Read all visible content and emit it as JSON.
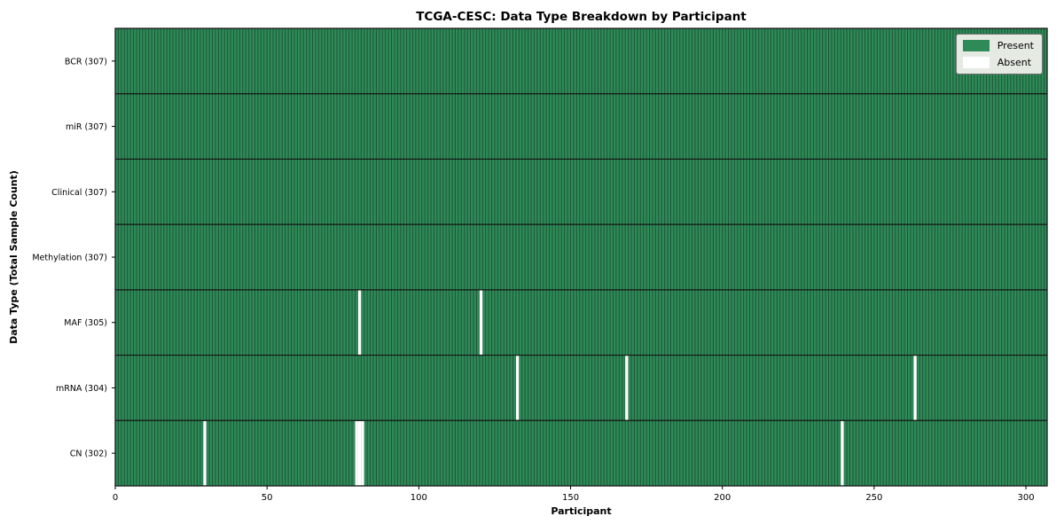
{
  "chart_data": {
    "type": "heatmap",
    "title": "TCGA-CESC: Data Type Breakdown by Participant",
    "xlabel": "Participant",
    "ylabel": "Data Type (Total Sample Count)",
    "n_participants": 307,
    "xlim": [
      0,
      307
    ],
    "x_ticks": [
      0,
      50,
      100,
      150,
      200,
      250,
      300
    ],
    "rows": [
      {
        "label": "BCR (307)",
        "name": "BCR",
        "total": 307,
        "absent_participants": []
      },
      {
        "label": "miR (307)",
        "name": "miR",
        "total": 307,
        "absent_participants": []
      },
      {
        "label": "Clinical (307)",
        "name": "Clinical",
        "total": 307,
        "absent_participants": []
      },
      {
        "label": "Methylation (307)",
        "name": "Methylation",
        "total": 307,
        "absent_participants": []
      },
      {
        "label": "MAF (305)",
        "name": "MAF",
        "total": 305,
        "absent_participants": [
          80,
          120
        ]
      },
      {
        "label": "mRNA (304)",
        "name": "mRNA",
        "total": 304,
        "absent_participants": [
          132,
          168,
          263
        ]
      },
      {
        "label": "CN (302)",
        "name": "CN",
        "total": 302,
        "absent_participants": [
          29,
          79,
          80,
          81,
          239
        ]
      }
    ],
    "legend": {
      "position": "upper right",
      "entries": [
        {
          "label": "Present",
          "color": "#2e8b57"
        },
        {
          "label": "Absent",
          "color": "#ffffff"
        }
      ]
    },
    "colors": {
      "present": "#2e8b57",
      "absent": "#ffffff",
      "cell_edge": "#1d4f36",
      "row_separator": "#141414",
      "plot_border": "#1a1a1a",
      "tick": "#000000",
      "legend_bg": "#e5eae3",
      "legend_border": "#737373"
    }
  }
}
